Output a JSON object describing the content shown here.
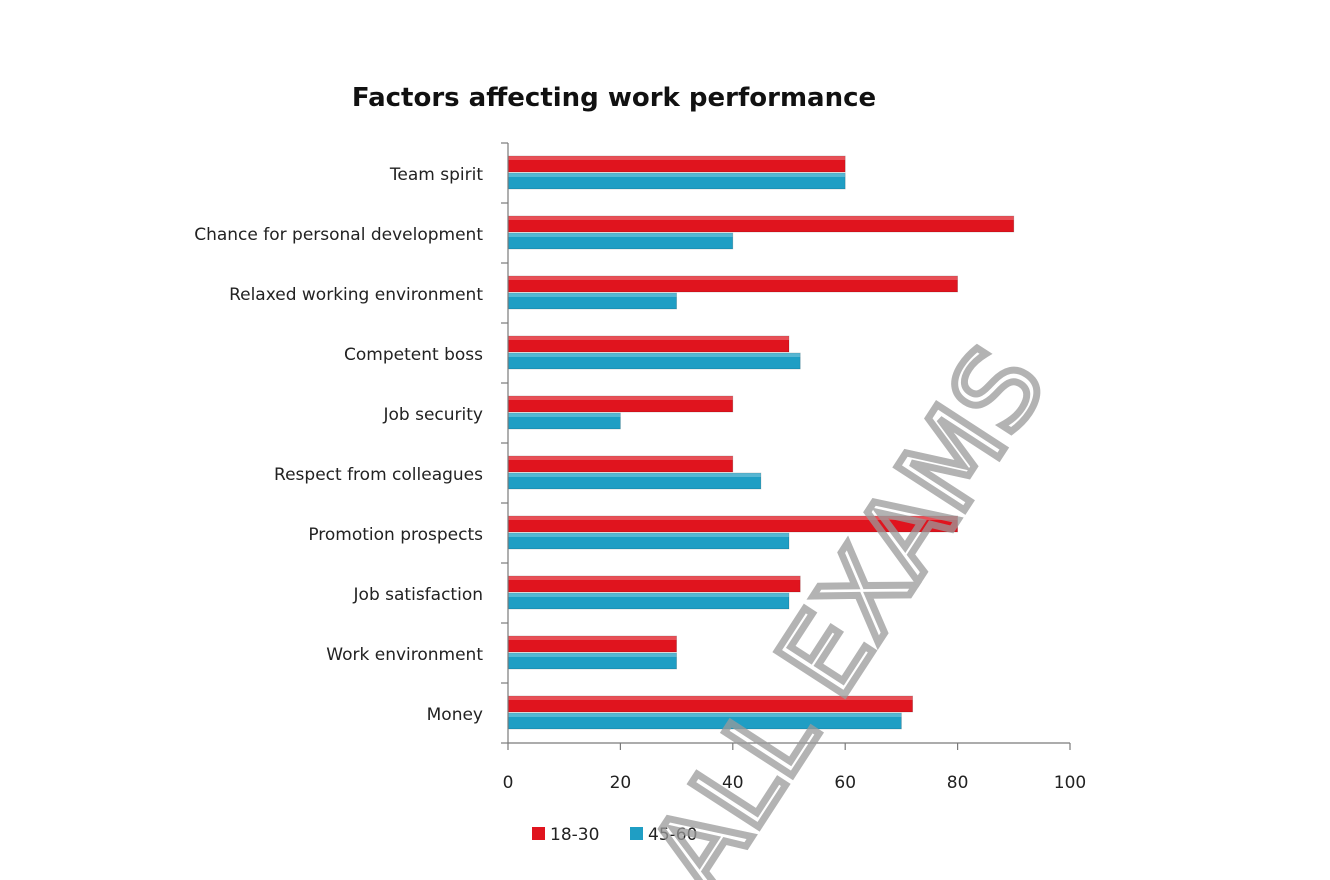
{
  "chart_data": {
    "type": "bar",
    "orientation": "horizontal",
    "title": "Factors affecting work performance",
    "xlabel": "",
    "ylabel": "",
    "xlim": [
      0,
      100
    ],
    "x_ticks": [
      "0",
      "20",
      "40",
      "60",
      "80",
      "100"
    ],
    "categories": [
      "Team spirit",
      "Chance for personal development",
      "Relaxed working environment",
      "Competent boss",
      "Job security",
      "Respect from colleagues",
      "Promotion prospects",
      "Job satisfaction",
      "Work environment",
      "Money"
    ],
    "series": [
      {
        "name": "18-30",
        "color": "#e0141e",
        "values": [
          60,
          90,
          80,
          50,
          40,
          40,
          80,
          52,
          30,
          72
        ]
      },
      {
        "name": "45-60",
        "color": "#1f9ec4",
        "values": [
          60,
          40,
          30,
          52,
          20,
          45,
          50,
          50,
          30,
          70
        ]
      }
    ],
    "legend_position": "bottom",
    "grid": false
  },
  "watermark": {
    "text": "ALL EXAMS"
  }
}
